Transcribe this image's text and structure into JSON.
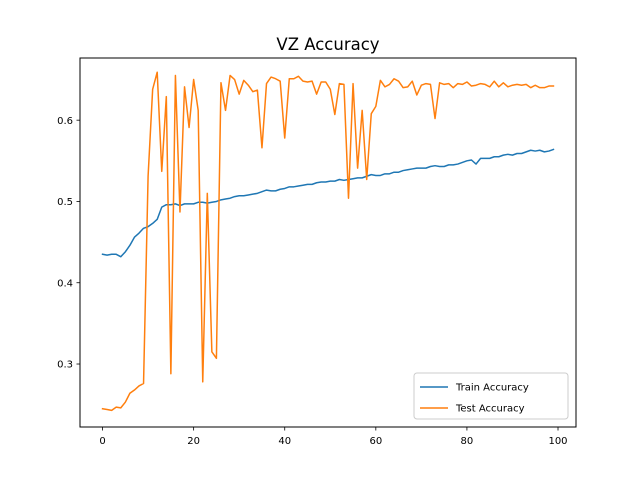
{
  "chart_data": {
    "type": "line",
    "title": "VZ Accuracy",
    "xlabel": "",
    "ylabel": "",
    "xlim": [
      -4.95,
      103.95
    ],
    "ylim": [
      0.2225,
      0.6765
    ],
    "xticks": [
      0,
      20,
      40,
      60,
      80,
      100
    ],
    "yticks": [
      0.3,
      0.4,
      0.5,
      0.6
    ],
    "xtick_labels": [
      "0",
      "20",
      "40",
      "60",
      "80",
      "100"
    ],
    "ytick_labels": [
      "0.3",
      "0.4",
      "0.5",
      "0.6"
    ],
    "grid": false,
    "legend_position": "lower-right",
    "series": [
      {
        "name": "Train Accuracy",
        "color": "#1f77b4",
        "values": [
          0.435,
          0.434,
          0.435,
          0.435,
          0.432,
          0.438,
          0.446,
          0.456,
          0.461,
          0.467,
          0.469,
          0.473,
          0.478,
          0.493,
          0.496,
          0.496,
          0.497,
          0.495,
          0.497,
          0.497,
          0.497,
          0.499,
          0.499,
          0.498,
          0.499,
          0.5,
          0.502,
          0.503,
          0.504,
          0.506,
          0.507,
          0.507,
          0.508,
          0.509,
          0.51,
          0.512,
          0.514,
          0.513,
          0.513,
          0.515,
          0.516,
          0.518,
          0.518,
          0.519,
          0.52,
          0.521,
          0.521,
          0.523,
          0.524,
          0.524,
          0.525,
          0.525,
          0.527,
          0.526,
          0.527,
          0.528,
          0.529,
          0.529,
          0.531,
          0.533,
          0.532,
          0.532,
          0.534,
          0.534,
          0.536,
          0.536,
          0.538,
          0.539,
          0.54,
          0.541,
          0.541,
          0.541,
          0.543,
          0.544,
          0.543,
          0.543,
          0.545,
          0.545,
          0.546,
          0.548,
          0.55,
          0.551,
          0.546,
          0.553,
          0.553,
          0.553,
          0.555,
          0.555,
          0.557,
          0.558,
          0.557,
          0.559,
          0.559,
          0.561,
          0.563,
          0.562,
          0.563,
          0.561,
          0.562,
          0.564
        ]
      },
      {
        "name": "Test Accuracy",
        "color": "#ff7f0e",
        "values": [
          0.245,
          0.244,
          0.243,
          0.247,
          0.246,
          0.253,
          0.264,
          0.268,
          0.273,
          0.276,
          0.531,
          0.638,
          0.659,
          0.537,
          0.629,
          0.288,
          0.655,
          0.487,
          0.641,
          0.591,
          0.65,
          0.612,
          0.278,
          0.51,
          0.315,
          0.307,
          0.646,
          0.612,
          0.655,
          0.65,
          0.632,
          0.649,
          0.643,
          0.635,
          0.637,
          0.566,
          0.645,
          0.653,
          0.651,
          0.648,
          0.578,
          0.651,
          0.651,
          0.654,
          0.648,
          0.647,
          0.648,
          0.632,
          0.647,
          0.647,
          0.638,
          0.607,
          0.645,
          0.644,
          0.504,
          0.645,
          0.541,
          0.612,
          0.527,
          0.608,
          0.617,
          0.649,
          0.641,
          0.644,
          0.651,
          0.648,
          0.64,
          0.641,
          0.648,
          0.631,
          0.643,
          0.645,
          0.644,
          0.602,
          0.646,
          0.644,
          0.645,
          0.64,
          0.645,
          0.644,
          0.647,
          0.642,
          0.643,
          0.645,
          0.644,
          0.641,
          0.648,
          0.641,
          0.646,
          0.641,
          0.643,
          0.644,
          0.643,
          0.644,
          0.64,
          0.643,
          0.64,
          0.64,
          0.642,
          0.642
        ]
      }
    ]
  }
}
